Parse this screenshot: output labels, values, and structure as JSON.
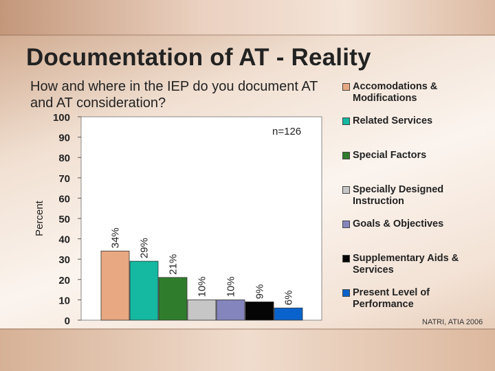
{
  "slide": {
    "title": "Documentation of AT - Reality",
    "subtitle": "How and where in the IEP do you document AT and AT consideration?",
    "source": "NATRI, ATIA 2006"
  },
  "chart_data": {
    "type": "bar",
    "title": "",
    "xlabel": "",
    "ylabel": "Percent",
    "ylim": [
      0,
      100
    ],
    "yticks": [
      0,
      10,
      20,
      30,
      40,
      50,
      60,
      70,
      80,
      90,
      100
    ],
    "annotation": "n=126",
    "grid": false,
    "legend_position": "right",
    "categories": [
      "Accomodations & Modifications",
      "Related Services",
      "Special Factors",
      "Specially Designed Instruction",
      "Goals & Objectives",
      "Supplementary Aids & Services",
      "Present Level of Performance"
    ],
    "values": [
      34,
      29,
      21,
      10,
      10,
      9,
      6
    ],
    "data_labels": [
      "34%",
      "29%",
      "21%",
      "10%",
      "10%",
      "9%",
      "6%"
    ],
    "colors": [
      "#e8a882",
      "#15b8a0",
      "#2f7d2c",
      "#c6c6c6",
      "#8585bd",
      "#050505",
      "#0a63cc"
    ]
  }
}
